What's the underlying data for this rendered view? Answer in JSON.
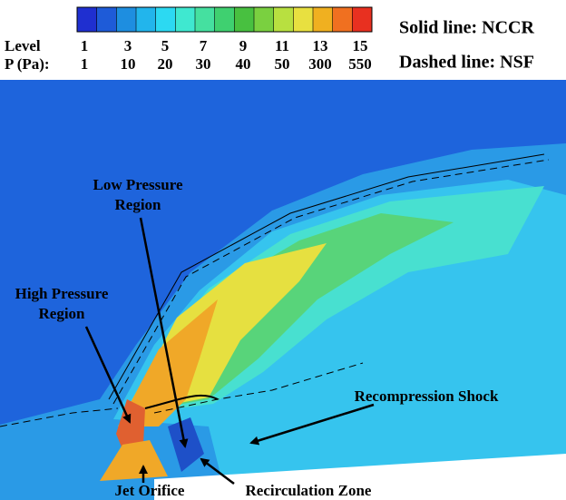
{
  "legend": {
    "colors": [
      "#1f2fd0",
      "#1e5bd8",
      "#1e8ee0",
      "#22b5ec",
      "#2cd9f2",
      "#3fe8d0",
      "#45e0a0",
      "#3fd070",
      "#48c040",
      "#7ad040",
      "#b8e040",
      "#e8e040",
      "#f0b020",
      "#f07020",
      "#e83020"
    ],
    "level_label": "Level",
    "p_label": "P (Pa):",
    "levels": [
      1,
      3,
      5,
      7,
      9,
      11,
      13,
      15
    ],
    "pressures": [
      1,
      10,
      20,
      30,
      40,
      50,
      300,
      550
    ]
  },
  "notes": {
    "solid": "Solid line: NCCR",
    "dashed": "Dashed line: NSF"
  },
  "annotations": {
    "low_pressure": [
      "Low Pressure",
      "Region"
    ],
    "high_pressure": [
      "High Pressure",
      "Region"
    ],
    "recompression": "Recompression Shock",
    "jet": "Jet Orifice",
    "recirculation": "Recirculation Zone"
  }
}
